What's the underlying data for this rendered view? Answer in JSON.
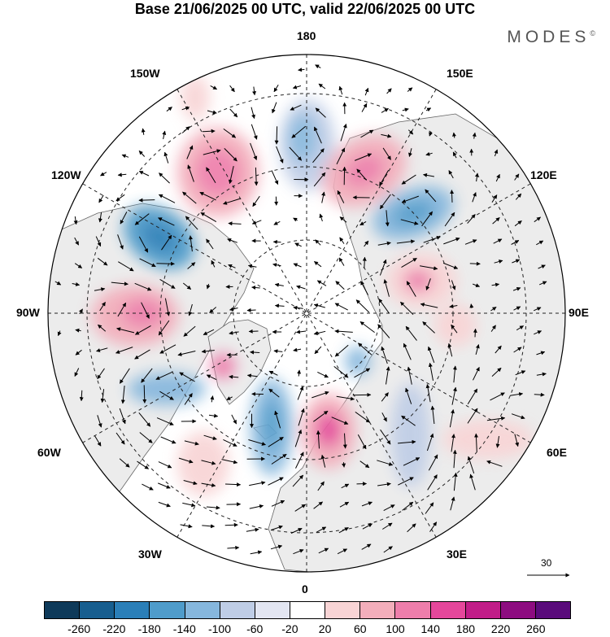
{
  "title": "Base 21/06/2025 00 UTC, valid 22/06/2025 00 UTC",
  "brand": "MODES",
  "brand_mark": "©",
  "longitude_labels": {
    "n180": "180",
    "w150": "150W",
    "e150": "150E",
    "w120": "120W",
    "e120": "120E",
    "w90": "90W",
    "e90": "90E",
    "w60": "60W",
    "e60": "60E",
    "w30": "30W",
    "e30": "30E",
    "s0": "0"
  },
  "reference_vector_label": "30",
  "colorbar": {
    "ticks": [
      "-260",
      "-220",
      "-180",
      "-140",
      "-100",
      "-60",
      "-20",
      "20",
      "60",
      "100",
      "140",
      "180",
      "220",
      "260"
    ],
    "colors": [
      "#0e3a5a",
      "#175e8f",
      "#2b7fb8",
      "#4f9ccb",
      "#86b7dd",
      "#bfcde6",
      "#e3e6f2",
      "#ffffff",
      "#f8d4d5",
      "#f3aebb",
      "#ee7eab",
      "#e5479b",
      "#c11d88",
      "#8d0c80",
      "#5a0b7b"
    ]
  },
  "colors": {
    "land": "#ececec",
    "ocean": "#ffffff"
  },
  "anomaly_cells": [
    {
      "sign": "neg",
      "level": 4,
      "region": "Alaska / Bering"
    },
    {
      "sign": "pos",
      "level": 3,
      "region": "Gulf of Alaska"
    },
    {
      "sign": "neg",
      "level": 4,
      "region": "East Siberian Sea"
    },
    {
      "sign": "pos",
      "level": 3,
      "region": "East Siberia"
    },
    {
      "sign": "neg",
      "level": 4,
      "region": "Central Siberia"
    },
    {
      "sign": "pos",
      "level": 3,
      "region": "Taymyr / Kara"
    },
    {
      "sign": "pos",
      "level": 3,
      "region": "Hudson Bay"
    },
    {
      "sign": "neg",
      "level": 3,
      "region": "Eastern Canada"
    },
    {
      "sign": "neg",
      "level": 4,
      "region": "Labrador Sea / N Atlantic"
    },
    {
      "sign": "pos",
      "level": 4,
      "region": "British Isles / North Sea"
    },
    {
      "sign": "neg",
      "level": 2,
      "region": "Western Russia"
    },
    {
      "sign": "pos",
      "level": 2,
      "region": "Central Asia"
    }
  ]
}
